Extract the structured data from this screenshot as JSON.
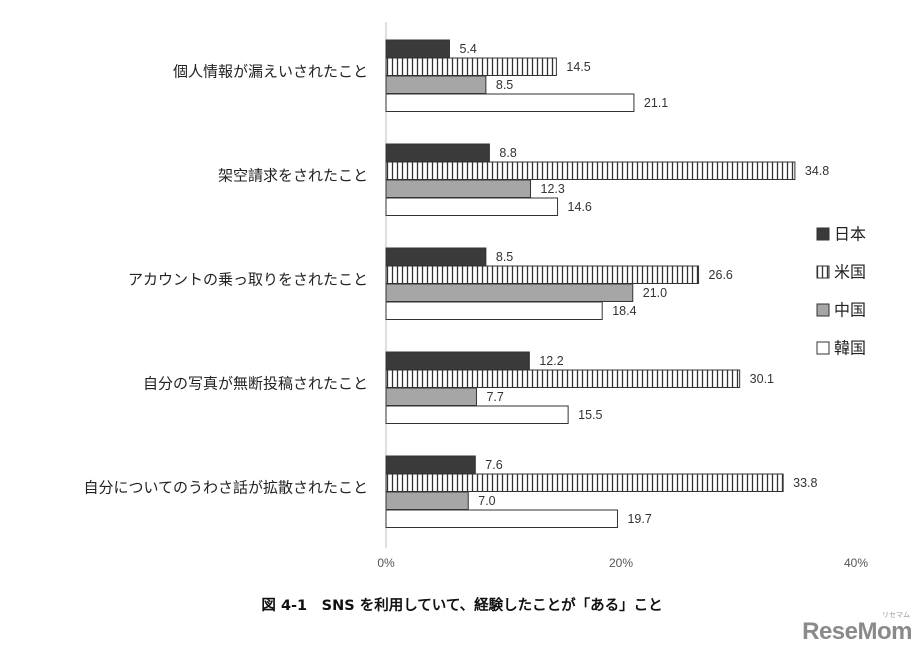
{
  "chart_data": {
    "type": "bar",
    "orientation": "horizontal",
    "title": "図 4-1　SNS を利用していて、経験したことが「ある」こと",
    "categories": [
      "個人情報が漏えいされたこと",
      "架空請求をされたこと",
      "アカウントの乗っ取りをされたこと",
      "自分の写真が無断投稿されたこと",
      "自分についてのうわさ話が拡散されたこと"
    ],
    "series": [
      {
        "name": "日本",
        "values": [
          5.4,
          8.8,
          8.5,
          12.2,
          7.6
        ],
        "style": "solid",
        "color": "#3a3a3a"
      },
      {
        "name": "米国",
        "values": [
          14.5,
          34.8,
          26.6,
          30.1,
          33.8
        ],
        "style": "vertical-stripes",
        "color": "#3a3a3a"
      },
      {
        "name": "中国",
        "values": [
          8.5,
          12.3,
          21.0,
          7.7,
          7.0
        ],
        "style": "solid",
        "color": "#a6a6a6"
      },
      {
        "name": "韓国",
        "values": [
          21.1,
          14.6,
          18.4,
          15.5,
          19.7
        ],
        "style": "outline",
        "color": "#ffffff"
      }
    ],
    "xlim": [
      0,
      40
    ],
    "xticks": [
      "0%",
      "20%",
      "40%"
    ],
    "xlabel": "",
    "ylabel": "",
    "grid": false,
    "legend_position": "right"
  },
  "logo_text": "ReseMom",
  "logo_small": "リセマム"
}
